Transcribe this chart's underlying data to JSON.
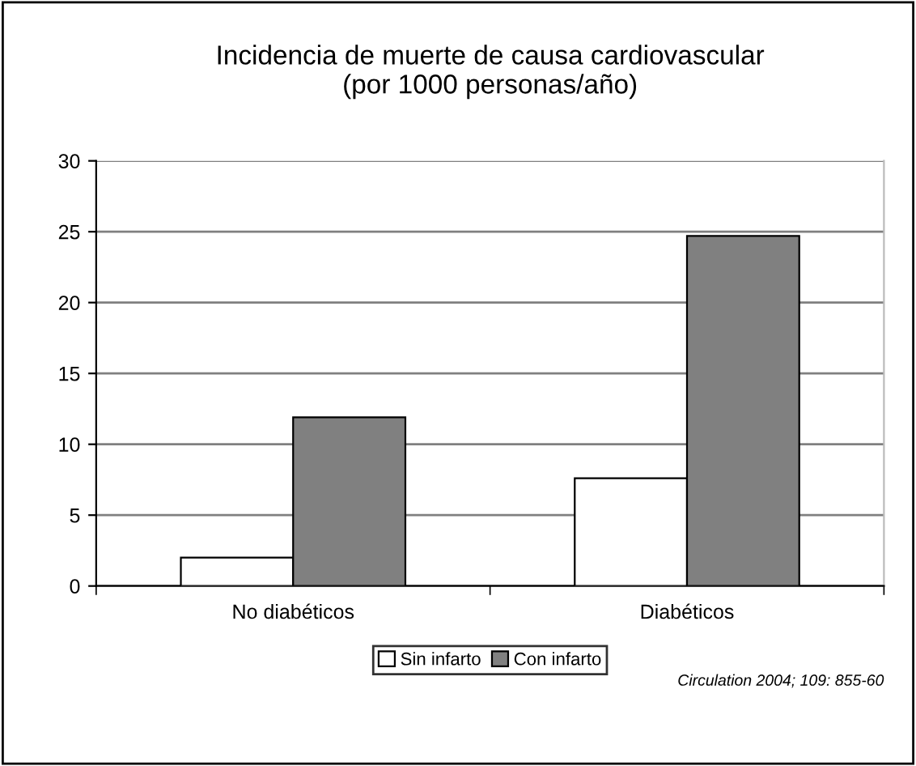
{
  "chart_data": {
    "type": "bar",
    "title": "Incidencia de muerte de causa cardiovascular\n(por 1000 personas/año)",
    "categories": [
      "No diabéticos",
      "Diabéticos"
    ],
    "series": [
      {
        "name": "Sin infarto",
        "color": "#ffffff",
        "values": [
          2.0,
          7.6
        ]
      },
      {
        "name": "Con infarto",
        "color": "#808080",
        "values": [
          11.9,
          24.7
        ]
      }
    ],
    "ylim": [
      0,
      30
    ],
    "yticks": [
      0,
      5,
      10,
      15,
      20,
      25,
      30
    ],
    "grid": "y",
    "legend": "bottom",
    "annotations": [
      "Circulation 2004; 109: 855-60"
    ]
  }
}
